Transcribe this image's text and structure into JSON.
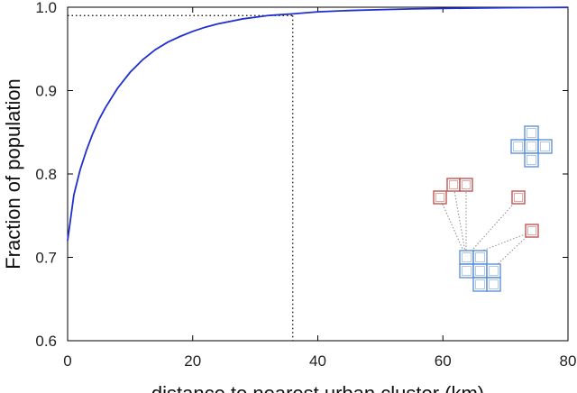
{
  "chart_data": {
    "type": "line",
    "title": "",
    "xlabel": "distance to nearest urban cluster (km)",
    "ylabel": "Fraction of population",
    "xlim": [
      0,
      80
    ],
    "ylim": [
      0.6,
      1.0
    ],
    "x_ticks": [
      "0",
      "20",
      "40",
      "60",
      "80"
    ],
    "y_ticks": [
      "0.6",
      "0.7",
      "0.8",
      "0.9",
      "1.0"
    ],
    "grid": false,
    "legend": "none",
    "series": [
      {
        "name": "",
        "color": "#1f2fd0",
        "x": [
          0,
          1,
          2,
          3,
          4,
          5,
          6,
          8,
          10,
          12,
          14,
          16,
          18,
          20,
          22,
          24,
          26,
          28,
          30,
          32,
          34,
          36,
          40,
          45,
          50,
          55,
          60,
          65,
          70,
          75,
          80
        ],
        "y": [
          0.72,
          0.775,
          0.805,
          0.828,
          0.848,
          0.865,
          0.879,
          0.903,
          0.922,
          0.937,
          0.949,
          0.958,
          0.965,
          0.971,
          0.976,
          0.98,
          0.983,
          0.986,
          0.988,
          0.99,
          0.991,
          0.992,
          0.9945,
          0.996,
          0.997,
          0.998,
          0.9985,
          0.999,
          0.9993,
          0.9996,
          0.9998
        ]
      }
    ],
    "annotations": {
      "reference_x": 36,
      "reference_y": 0.99,
      "reference_style": "dotted"
    }
  },
  "inset": {
    "description_icon": "urban-cluster-diagram-icon",
    "urban_cluster_color": "#5b8fd8",
    "rural_cell_color": "#c0504d",
    "link_color": "#888888"
  }
}
